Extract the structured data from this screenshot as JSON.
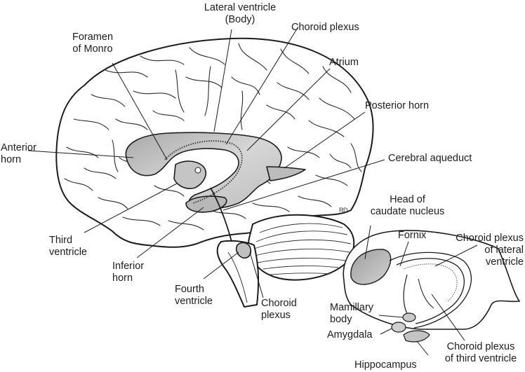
{
  "main_labels": {
    "lateral_ventricle_body": "Lateral ventricle\n(Body)",
    "foramen_of_monro": "Foramen\nof Monro",
    "choroid_plexus_top": "Choroid plexus",
    "atrium": "Atrium",
    "posterior_horn": "Posterior horn",
    "anterior_horn": "Anterior\nhorn",
    "cerebral_aqueduct": "Cerebral aqueduct",
    "third_ventricle": "Third\nventricle",
    "inferior_horn": "Inferior\nhorn",
    "fourth_ventricle": "Fourth\nventricle",
    "choroid_plexus_bottom": "Choroid\nplexus"
  },
  "inset_labels": {
    "head_of_caudate": "Head of\ncaudate nucleus",
    "fornix": "Fornix",
    "choroid_plexus_lateral": "Choroid plexus\nof lateral\nventricle",
    "mamillary_body": "Mamillary\nbody",
    "amygdala": "Amygdala",
    "choroid_plexus_third": "Choroid plexus\nof third ventricle",
    "hippocampus": "Hippocampus"
  },
  "artist_mark": "RD",
  "colors": {
    "ventricle_fill": "#c9c9c9",
    "line": "#1c1c1c",
    "background": "#ffffff"
  }
}
